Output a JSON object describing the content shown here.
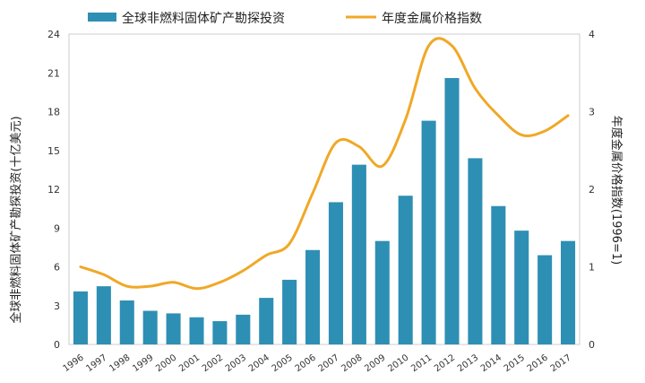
{
  "chart_data": {
    "type": "bar+line",
    "categories": [
      "1996",
      "1997",
      "1998",
      "1999",
      "2000",
      "2001",
      "2002",
      "2003",
      "2004",
      "2005",
      "2006",
      "2007",
      "2008",
      "2009",
      "2010",
      "2011",
      "2012",
      "2013",
      "2014",
      "2015",
      "2016",
      "2017"
    ],
    "series": [
      {
        "name": "全球非燃料固体矿产勘探投资",
        "type": "bar",
        "axis": "left",
        "color": "#2e8fb4",
        "values": [
          4.1,
          4.5,
          3.4,
          2.6,
          2.4,
          2.1,
          1.8,
          2.3,
          3.6,
          5.0,
          7.3,
          11.0,
          13.9,
          8.0,
          11.5,
          17.3,
          20.6,
          14.4,
          10.7,
          8.8,
          6.9,
          8.0
        ]
      },
      {
        "name": "年度金属价格指数",
        "type": "line",
        "axis": "right",
        "color": "#f0a826",
        "values": [
          1.0,
          0.9,
          0.75,
          0.75,
          0.8,
          0.72,
          0.8,
          0.95,
          1.15,
          1.3,
          1.95,
          2.6,
          2.55,
          2.3,
          2.9,
          3.85,
          3.85,
          3.3,
          2.95,
          2.7,
          2.75,
          2.95
        ]
      }
    ],
    "ylabel_left": "全球非燃料固体矿产勘探投资(十亿美元)",
    "ylabel_right": "年度金属价格指数(1996=1)",
    "ylim_left": [
      0,
      24
    ],
    "yticks_left": [
      0,
      3,
      6,
      9,
      12,
      15,
      18,
      21,
      24
    ],
    "ylim_right": [
      0,
      4
    ],
    "yticks_right": [
      0,
      1,
      2,
      3,
      4
    ],
    "legend_position": "top",
    "grid": false
  }
}
